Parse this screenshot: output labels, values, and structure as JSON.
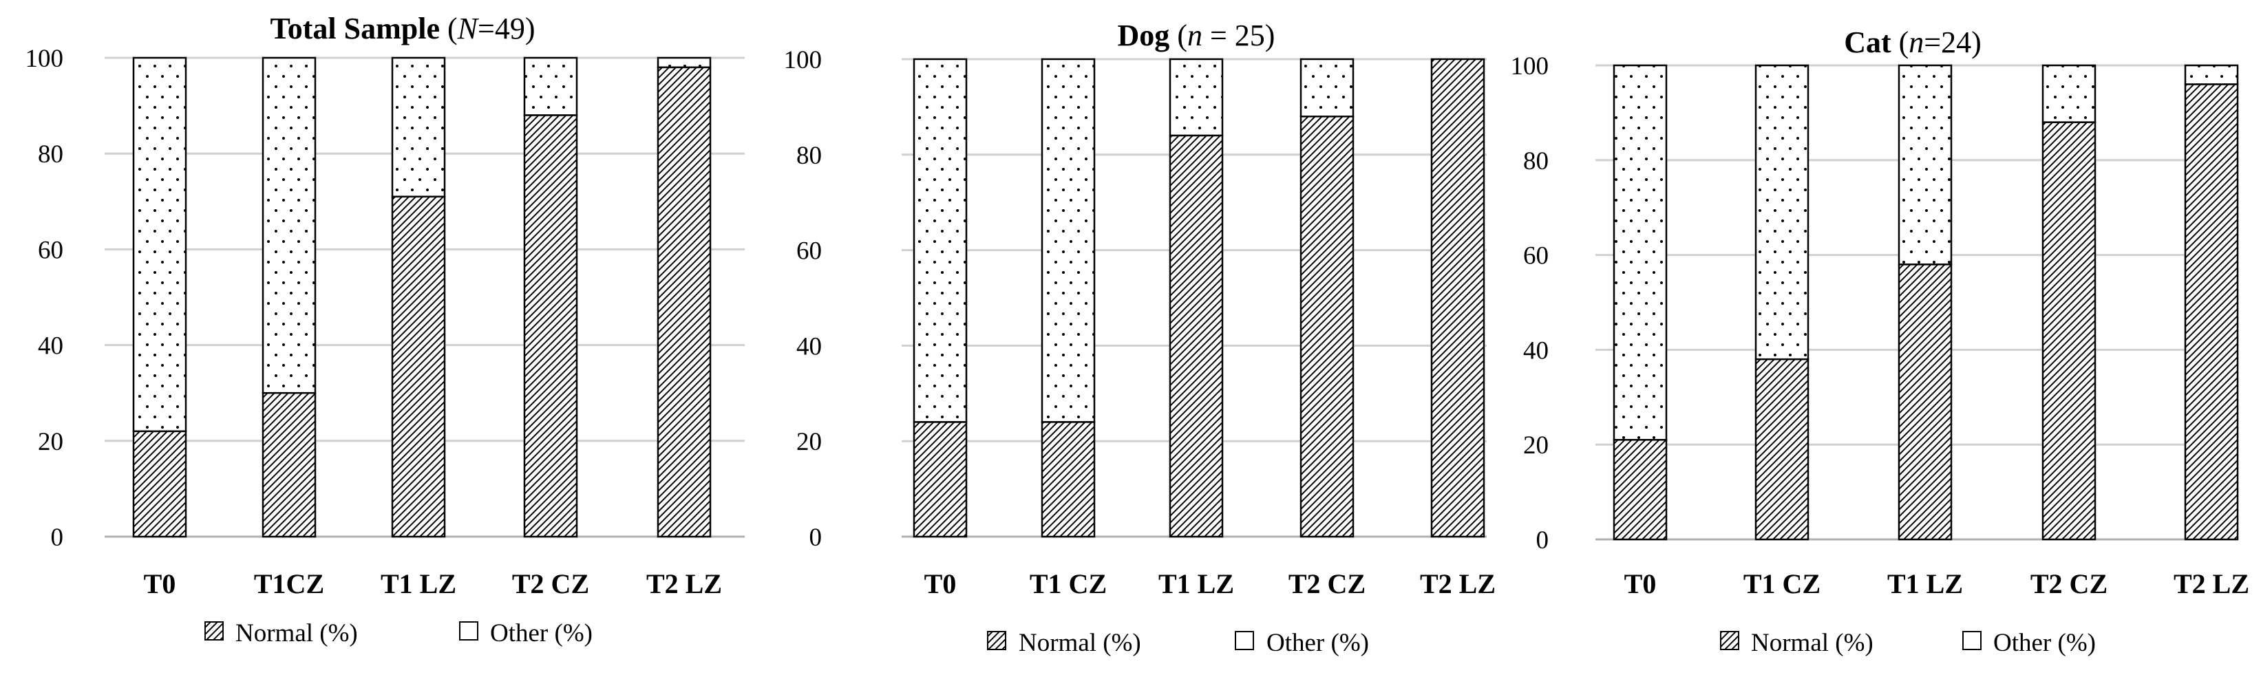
{
  "chart_data": [
    {
      "type": "bar",
      "stacked": true,
      "title_main": "Total Sample",
      "title_paren_open": "(",
      "title_n_var": "N",
      "title_n_eq": "=49",
      "title_paren_close": ")",
      "categories": [
        "T0",
        "T1CZ",
        "T1 LZ",
        "T2 CZ",
        "T2 LZ"
      ],
      "series": [
        {
          "name": "Normal (%)",
          "values": [
            22,
            30,
            71,
            88,
            98
          ]
        },
        {
          "name": "Other (%)",
          "values": [
            78,
            70,
            29,
            12,
            2
          ]
        }
      ],
      "ylim": [
        0,
        100
      ],
      "yticks": [
        "0",
        "20",
        "40",
        "60",
        "80",
        "100"
      ],
      "legend": [
        "Normal (%)",
        "Other (%)"
      ]
    },
    {
      "type": "bar",
      "stacked": true,
      "title_main": "Dog",
      "title_paren_open": "(",
      "title_n_var": "n",
      "title_n_eq": " = 25",
      "title_paren_close": ")",
      "categories": [
        "T0",
        "T1 CZ",
        "T1 LZ",
        "T2 CZ",
        "T2 LZ"
      ],
      "series": [
        {
          "name": "Normal (%)",
          "values": [
            24,
            24,
            84,
            88,
            100
          ]
        },
        {
          "name": "Other (%)",
          "values": [
            76,
            76,
            16,
            12,
            0
          ]
        }
      ],
      "ylim": [
        0,
        100
      ],
      "yticks": [
        "0",
        "20",
        "40",
        "60",
        "80",
        "100"
      ],
      "legend": [
        "Normal (%)",
        "Other (%)"
      ]
    },
    {
      "type": "bar",
      "stacked": true,
      "title_main": "Cat",
      "title_paren_open": "(",
      "title_n_var": "n",
      "title_n_eq": "=24",
      "title_paren_close": ")",
      "categories": [
        "T0",
        "T1 CZ",
        "T1 LZ",
        "T2 CZ",
        "T2 LZ"
      ],
      "series": [
        {
          "name": "Normal (%)",
          "values": [
            21,
            38,
            58,
            88,
            96
          ]
        },
        {
          "name": "Other (%)",
          "values": [
            79,
            62,
            42,
            12,
            4
          ]
        }
      ],
      "ylim": [
        0,
        100
      ],
      "yticks": [
        "0",
        "20",
        "40",
        "60",
        "80",
        "100"
      ],
      "legend": [
        "Normal (%)",
        "Other (%)"
      ]
    }
  ]
}
